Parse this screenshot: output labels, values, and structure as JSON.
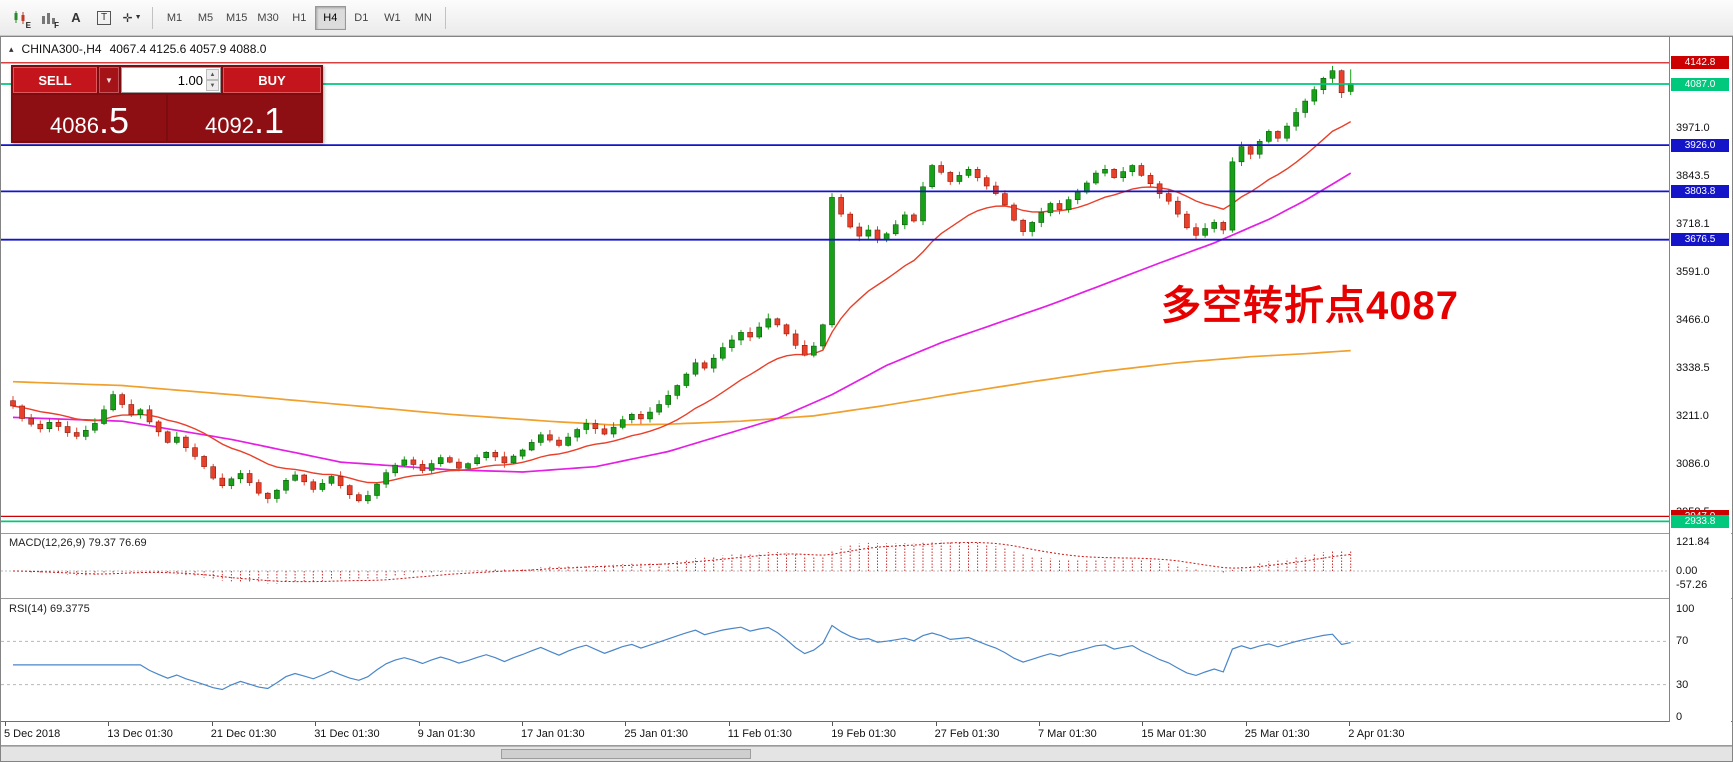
{
  "icons": {
    "collapse": "▴",
    "caret_down": "▼",
    "spin_up": "▲",
    "spin_down": "▼"
  },
  "toolbar": {
    "tool_icons": [
      {
        "name": "candlestick-style-icon",
        "badge": "E"
      },
      {
        "name": "bar-style-icon",
        "badge": "F"
      },
      {
        "name": "font-tool-icon",
        "badge": "A"
      },
      {
        "name": "textbox-tool-icon",
        "badge": "T"
      },
      {
        "name": "crosshair-tool-icon",
        "badge": ""
      }
    ],
    "timeframes": [
      "M1",
      "M5",
      "M15",
      "M30",
      "H1",
      "H4",
      "D1",
      "W1",
      "MN"
    ],
    "active_timeframe": "H4"
  },
  "trade_panel": {
    "sell_label": "SELL",
    "buy_label": "BUY",
    "volume": "1.00",
    "sell_price": "4086",
    "sell_pips": ".5",
    "buy_price": "4092",
    "buy_pips": ".1"
  },
  "chart_data": {
    "type": "candlestick",
    "symbol_title": "CHINA300-,H4",
    "ohlc_text": "4067.4 4125.6 4057.9 4088.0",
    "last_ohlc": [
      4067.4,
      4125.6,
      4057.9,
      4088.0
    ],
    "annotation": {
      "text": "多空转折点4087",
      "color": "#e60000"
    },
    "y_ticks": [
      "3971.0",
      "3843.5",
      "3718.1",
      "3591.0",
      "3466.0",
      "3338.5",
      "3211.0",
      "3086.0",
      "2958.5"
    ],
    "x_labels": [
      "5 Dec 2018",
      "13 Dec 01:30",
      "21 Dec 01:30",
      "31 Dec 01:30",
      "9 Jan 01:30",
      "17 Jan 01:30",
      "25 Jan 01:30",
      "11 Feb 01:30",
      "19 Feb 01:30",
      "27 Feb 01:30",
      "7 Mar 01:30",
      "15 Mar 01:30",
      "25 Mar 01:30",
      "2 Apr 01:30"
    ],
    "hlines": [
      {
        "value": "4142.8",
        "color": "#cc0000",
        "w": 1.2
      },
      {
        "value": "4087.0",
        "color": "#00c87d",
        "w": 1.8
      },
      {
        "value": "3926.0",
        "color": "#1414c8",
        "w": 1.8
      },
      {
        "value": "3803.8",
        "color": "#1414c8",
        "w": 1.8
      },
      {
        "value": "3676.5",
        "color": "#1414c8",
        "w": 1.8
      },
      {
        "value": "2947.0",
        "color": "#cc0000",
        "w": 1.2
      },
      {
        "value": "2933.8",
        "color": "#00c87d",
        "w": 1.8
      }
    ],
    "price_domain": [
      2906,
      4211
    ],
    "first_open": 3252,
    "closes": [
      3238,
      3205,
      3190,
      3178,
      3195,
      3184,
      3168,
      3158,
      3174,
      3192,
      3228,
      3268,
      3242,
      3215,
      3228,
      3196,
      3170,
      3142,
      3156,
      3128,
      3105,
      3078,
      3048,
      3028,
      3046,
      3060,
      3036,
      3008,
      2994,
      3016,
      3042,
      3056,
      3038,
      3018,
      3034,
      3052,
      3028,
      3004,
      2988,
      3002,
      3032,
      3062,
      3082,
      3096,
      3084,
      3068,
      3086,
      3102,
      3090,
      3074,
      3086,
      3102,
      3116,
      3104,
      3088,
      3106,
      3122,
      3142,
      3162,
      3148,
      3134,
      3156,
      3176,
      3192,
      3178,
      3164,
      3182,
      3202,
      3216,
      3204,
      3222,
      3242,
      3266,
      3292,
      3322,
      3352,
      3338,
      3364,
      3392,
      3412,
      3432,
      3420,
      3446,
      3468,
      3452,
      3428,
      3398,
      3372,
      3396,
      3452,
      3788,
      3744,
      3710,
      3686,
      3702,
      3676,
      3692,
      3716,
      3742,
      3726,
      3816,
      3872,
      3854,
      3830,
      3846,
      3862,
      3840,
      3818,
      3798,
      3768,
      3728,
      3698,
      3722,
      3748,
      3772,
      3756,
      3782,
      3802,
      3826,
      3852,
      3862,
      3840,
      3856,
      3872,
      3846,
      3824,
      3798,
      3778,
      3744,
      3708,
      3688,
      3706,
      3722,
      3702,
      3882,
      3922,
      3902,
      3936,
      3962,
      3944,
      3976,
      4012,
      4042,
      4072,
      4102,
      4122,
      4064,
      4088
    ],
    "candle_up_color": "#18a018",
    "candle_down_color": "#e8402a",
    "ma_fast": {
      "period": 16,
      "color": "#e8402a"
    },
    "ma_mid": {
      "color": "#e41ee4",
      "points": [
        [
          0,
          3208
        ],
        [
          12,
          3198
        ],
        [
          24,
          3150
        ],
        [
          36,
          3090
        ],
        [
          48,
          3070
        ],
        [
          56,
          3064
        ],
        [
          64,
          3078
        ],
        [
          72,
          3118
        ],
        [
          84,
          3205
        ],
        [
          90,
          3268
        ],
        [
          96,
          3345
        ],
        [
          102,
          3405
        ],
        [
          108,
          3455
        ],
        [
          114,
          3505
        ],
        [
          120,
          3560
        ],
        [
          126,
          3615
        ],
        [
          132,
          3668
        ],
        [
          138,
          3730
        ],
        [
          142,
          3780
        ],
        [
          147,
          3852
        ]
      ]
    },
    "ma_slow": {
      "color": "#f0a02c",
      "points": [
        [
          0,
          3302
        ],
        [
          12,
          3292
        ],
        [
          24,
          3268
        ],
        [
          36,
          3242
        ],
        [
          48,
          3216
        ],
        [
          60,
          3196
        ],
        [
          66,
          3188
        ],
        [
          72,
          3190
        ],
        [
          80,
          3198
        ],
        [
          88,
          3212
        ],
        [
          96,
          3240
        ],
        [
          104,
          3272
        ],
        [
          112,
          3302
        ],
        [
          120,
          3330
        ],
        [
          128,
          3352
        ],
        [
          136,
          3368
        ],
        [
          142,
          3376
        ],
        [
          147,
          3384
        ]
      ]
    },
    "indicators": {
      "macd": {
        "label": "MACD(12,26,9) 79.37 76.69",
        "axis": [
          "121.84",
          "0.00",
          "-57.26"
        ],
        "color": "#d03030",
        "fast": 12,
        "slow": 26,
        "signal": 9
      },
      "rsi": {
        "label": "RSI(14) 69.3775",
        "axis": [
          "100",
          "70",
          "30",
          "0"
        ],
        "levels": [
          70,
          30
        ],
        "period": 14,
        "color": "#4a86c8"
      }
    }
  }
}
